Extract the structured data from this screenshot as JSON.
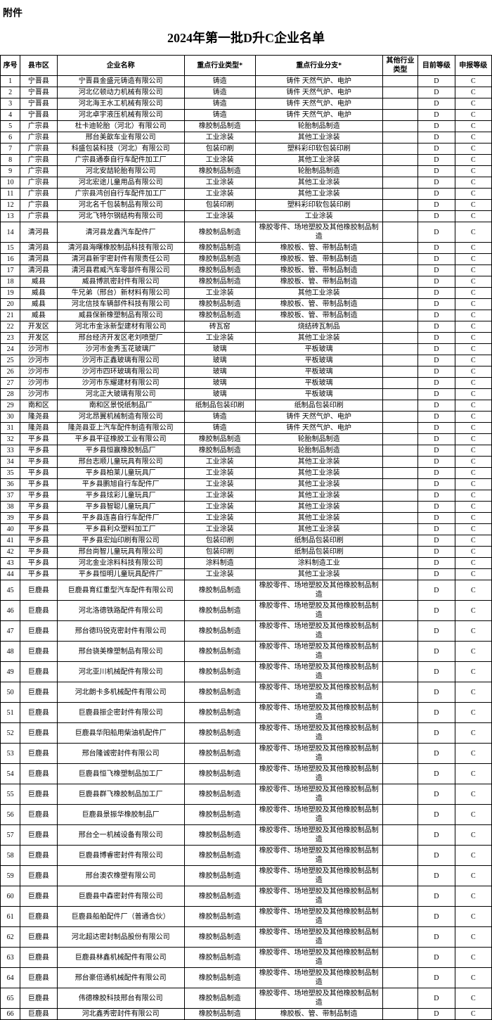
{
  "attachment_label": "附件",
  "title": "2024年第一批D升C企业名单",
  "columns": [
    "序号",
    "县市区",
    "企业名称",
    "重点行业类型*",
    "重点行业分支*",
    "其他行业类型",
    "目前等级",
    "申报等级"
  ],
  "rows": [
    {
      "n": 1,
      "county": "宁晋县",
      "name": "宁晋县金盛元铸造有限公司",
      "ind": "铸造",
      "br": "铸件  天然气炉、电炉",
      "o": "",
      "cur": "D",
      "app": "C",
      "tall": false
    },
    {
      "n": 2,
      "county": "宁晋县",
      "name": "河北亿顿动力机械有限公司",
      "ind": "铸造",
      "br": "铸件  天然气炉、电炉",
      "o": "",
      "cur": "D",
      "app": "C",
      "tall": false
    },
    {
      "n": 3,
      "county": "宁晋县",
      "name": "河北海王水工机械有限公司",
      "ind": "铸造",
      "br": "铸件  天然气炉、电炉",
      "o": "",
      "cur": "D",
      "app": "C",
      "tall": false
    },
    {
      "n": 4,
      "county": "宁晋县",
      "name": "河北卓宇液压机械有限公司",
      "ind": "铸造",
      "br": "铸件  天然气炉、电炉",
      "o": "",
      "cur": "D",
      "app": "C",
      "tall": false
    },
    {
      "n": 5,
      "county": "广宗县",
      "name": "杜卡迪轮胎（河北）有限公司",
      "ind": "橡胶制品制造",
      "br": "轮胎制品制造",
      "o": "",
      "cur": "D",
      "app": "C",
      "tall": false
    },
    {
      "n": 6,
      "county": "广宗县",
      "name": "邢台美歆车业有限公司",
      "ind": "工业涂装",
      "br": "其他工业涂装",
      "o": "",
      "cur": "D",
      "app": "C",
      "tall": false
    },
    {
      "n": 7,
      "county": "广宗县",
      "name": "科盛包装科技（河北）有限公司",
      "ind": "包装印刷",
      "br": "塑料彩印软包装印刷",
      "o": "",
      "cur": "D",
      "app": "C",
      "tall": false
    },
    {
      "n": 8,
      "county": "广宗县",
      "name": "广宗县通泰自行车配件加工厂",
      "ind": "工业涂装",
      "br": "其他工业涂装",
      "o": "",
      "cur": "D",
      "app": "C",
      "tall": false
    },
    {
      "n": 9,
      "county": "广宗县",
      "name": "河北安喆轮胎有限公司",
      "ind": "橡胶制品制造",
      "br": "轮胎制品制造",
      "o": "",
      "cur": "D",
      "app": "C",
      "tall": false
    },
    {
      "n": 10,
      "county": "广宗县",
      "name": "河北宏途儿童用品有限公司",
      "ind": "工业涂装",
      "br": "其他工业涂装",
      "o": "",
      "cur": "D",
      "app": "C",
      "tall": false
    },
    {
      "n": 11,
      "county": "广宗县",
      "name": "广宗县鸿创自行车配件加工厂",
      "ind": "工业涂装",
      "br": "其他工业涂装",
      "o": "",
      "cur": "D",
      "app": "C",
      "tall": false
    },
    {
      "n": 12,
      "county": "广宗县",
      "name": "河北名千包装制品有限公司",
      "ind": "包装印刷",
      "br": "塑料彩印软包装印刷",
      "o": "",
      "cur": "D",
      "app": "C",
      "tall": false
    },
    {
      "n": 13,
      "county": "广宗县",
      "name": "河北飞特尔钢结构有限公司",
      "ind": "工业涂装",
      "br": "工业涂装",
      "o": "",
      "cur": "D",
      "app": "C",
      "tall": false
    },
    {
      "n": 14,
      "county": "清河县",
      "name": "清河县龙鑫汽车配件厂",
      "ind": "橡胶制品制造",
      "br": "橡胶零件、场地塑胶及其他橡胶制品制造",
      "o": "",
      "cur": "D",
      "app": "C",
      "tall": true
    },
    {
      "n": 15,
      "county": "清河县",
      "name": "清河县海曙橡胶制品科技有限公司",
      "ind": "橡胶制品制造",
      "br": "橡胶板、管、带制品制造",
      "o": "",
      "cur": "D",
      "app": "C",
      "tall": false
    },
    {
      "n": 16,
      "county": "清河县",
      "name": "清河县新宇密封件有限责任公司",
      "ind": "橡胶制品制造",
      "br": "橡胶板、管、带制品制造",
      "o": "",
      "cur": "D",
      "app": "C",
      "tall": false
    },
    {
      "n": 17,
      "county": "清河县",
      "name": "清河县君威汽车零部件有限公司",
      "ind": "橡胶制品制造",
      "br": "橡胶板、管、带制品制造",
      "o": "",
      "cur": "D",
      "app": "C",
      "tall": false
    },
    {
      "n": 18,
      "county": "威县",
      "name": "威县博凯密封件有限公司",
      "ind": "橡胶制品制造",
      "br": "橡胶板、管、带制品制造",
      "o": "",
      "cur": "D",
      "app": "C",
      "tall": false
    },
    {
      "n": 19,
      "county": "威县",
      "name": "牛兄弟（邢台）新材料有限公司",
      "ind": "工业涂装",
      "br": "其他工业涂装",
      "o": "",
      "cur": "D",
      "app": "C",
      "tall": false
    },
    {
      "n": 20,
      "county": "威县",
      "name": "河北信技车辆部件科技有限公司",
      "ind": "橡胶制品制造",
      "br": "橡胶板、管、带制品制造",
      "o": "",
      "cur": "D",
      "app": "C",
      "tall": false
    },
    {
      "n": 21,
      "county": "威县",
      "name": "威县保新橡塑制品有限公司",
      "ind": "橡胶制品制造",
      "br": "橡胶板、管、带制品制造",
      "o": "",
      "cur": "D",
      "app": "C",
      "tall": false
    },
    {
      "n": 22,
      "county": "开发区",
      "name": "河北市金泳新型建材有限公司",
      "ind": "砖瓦窑",
      "br": "烧结砖瓦制品",
      "o": "",
      "cur": "D",
      "app": "C",
      "tall": false
    },
    {
      "n": 23,
      "county": "开发区",
      "name": "邢台经济开发区老刘喷塑厂",
      "ind": "工业涂装",
      "br": "其他工业涂装",
      "o": "",
      "cur": "D",
      "app": "C",
      "tall": false
    },
    {
      "n": 24,
      "county": "沙河市",
      "name": "沙河市金秀玉花玻璃厂",
      "ind": "玻璃",
      "br": "平板玻璃",
      "o": "",
      "cur": "D",
      "app": "C",
      "tall": false
    },
    {
      "n": 25,
      "county": "沙河市",
      "name": "沙河市正鑫玻璃有限公司",
      "ind": "玻璃",
      "br": "平板玻璃",
      "o": "",
      "cur": "D",
      "app": "C",
      "tall": false
    },
    {
      "n": 26,
      "county": "沙河市",
      "name": "沙河市四环玻璃有限公司",
      "ind": "玻璃",
      "br": "平板玻璃",
      "o": "",
      "cur": "D",
      "app": "C",
      "tall": false
    },
    {
      "n": 27,
      "county": "沙河市",
      "name": "沙河市东耀建材有限公司",
      "ind": "玻璃",
      "br": "平板玻璃",
      "o": "",
      "cur": "D",
      "app": "C",
      "tall": false
    },
    {
      "n": 28,
      "county": "沙河市",
      "name": "河北正大玻璃有限公司",
      "ind": "玻璃",
      "br": "平板玻璃",
      "o": "",
      "cur": "D",
      "app": "C",
      "tall": false
    },
    {
      "n": 29,
      "county": "南和区",
      "name": "南和区景悦纸制品厂",
      "ind": "纸制品包装印刷",
      "br": "纸制品包装印刷",
      "o": "",
      "cur": "D",
      "app": "C",
      "tall": false
    },
    {
      "n": 30,
      "county": "隆尧县",
      "name": "河北昂翼机械制造有限公司",
      "ind": "铸造",
      "br": "铸件  天然气炉、电炉",
      "o": "",
      "cur": "D",
      "app": "C",
      "tall": false
    },
    {
      "n": 31,
      "county": "隆尧县",
      "name": "隆尧县亚上汽车配件制造有限公司",
      "ind": "铸造",
      "br": "铸件  天然气炉、电炉",
      "o": "",
      "cur": "D",
      "app": "C",
      "tall": false
    },
    {
      "n": 32,
      "county": "平乡县",
      "name": "平乡县平征橡胶工业有限公司",
      "ind": "橡胶制品制造",
      "br": "轮胎制品制造",
      "o": "",
      "cur": "D",
      "app": "C",
      "tall": false
    },
    {
      "n": 33,
      "county": "平乡县",
      "name": "平乡县恒赢橡胶制品厂",
      "ind": "橡胶制品制造",
      "br": "轮胎制品制造",
      "o": "",
      "cur": "D",
      "app": "C",
      "tall": false
    },
    {
      "n": 34,
      "county": "平乡县",
      "name": "邢台志顺儿童玩具有限公司",
      "ind": "工业涂装",
      "br": "其他工业涂装",
      "o": "",
      "cur": "D",
      "app": "C",
      "tall": false
    },
    {
      "n": 35,
      "county": "平乡县",
      "name": "平乡县柏莱儿童玩具厂",
      "ind": "工业涂装",
      "br": "其他工业涂装",
      "o": "",
      "cur": "D",
      "app": "C",
      "tall": false
    },
    {
      "n": 36,
      "county": "平乡县",
      "name": "平乡县鹏旭自行车配件厂",
      "ind": "工业涂装",
      "br": "其他工业涂装",
      "o": "",
      "cur": "D",
      "app": "C",
      "tall": false
    },
    {
      "n": 37,
      "county": "平乡县",
      "name": "平乡县炫彩儿童玩具厂",
      "ind": "工业涂装",
      "br": "其他工业涂装",
      "o": "",
      "cur": "D",
      "app": "C",
      "tall": false
    },
    {
      "n": 38,
      "county": "平乡县",
      "name": "平乡县智聪儿童玩具厂",
      "ind": "工业涂装",
      "br": "其他工业涂装",
      "o": "",
      "cur": "D",
      "app": "C",
      "tall": false
    },
    {
      "n": 39,
      "county": "平乡县",
      "name": "平乡县连喜自行车配件厂",
      "ind": "工业涂装",
      "br": "其他工业涂装",
      "o": "",
      "cur": "D",
      "app": "C",
      "tall": false
    },
    {
      "n": 40,
      "county": "平乡县",
      "name": "平乡县利众塑料加工厂",
      "ind": "工业涂装",
      "br": "其他工业涂装",
      "o": "",
      "cur": "D",
      "app": "C",
      "tall": false
    },
    {
      "n": 41,
      "county": "平乡县",
      "name": "平乡县宏灿印刷有限公司",
      "ind": "包装印刷",
      "br": "纸制品包装印刷",
      "o": "",
      "cur": "D",
      "app": "C",
      "tall": false
    },
    {
      "n": 42,
      "county": "平乡县",
      "name": "邢台尚智儿童玩具有限公司",
      "ind": "包装印刷",
      "br": "纸制品包装印刷",
      "o": "",
      "cur": "D",
      "app": "C",
      "tall": false
    },
    {
      "n": 43,
      "county": "平乡县",
      "name": "河北金业涂料科技有限公司",
      "ind": "涂料制造",
      "br": "涂料制造工业",
      "o": "",
      "cur": "D",
      "app": "C",
      "tall": false
    },
    {
      "n": 44,
      "county": "平乡县",
      "name": "平乡县恒明儿童玩具配件厂",
      "ind": "工业涂装",
      "br": "其他工业涂装",
      "o": "",
      "cur": "D",
      "app": "C",
      "tall": false
    },
    {
      "n": 45,
      "county": "巨鹿县",
      "name": "巨鹿县育红重型汽车配件有限公司",
      "ind": "橡胶制品制造",
      "br": "橡胶零件、场地塑胶及其他橡胶制品制造",
      "o": "",
      "cur": "D",
      "app": "C",
      "tall": true
    },
    {
      "n": 46,
      "county": "巨鹿县",
      "name": "河北洛德铁路配件有限公司",
      "ind": "橡胶制品制造",
      "br": "橡胶零件、场地塑胶及其他橡胶制品制造",
      "o": "",
      "cur": "D",
      "app": "C",
      "tall": true
    },
    {
      "n": 47,
      "county": "巨鹿县",
      "name": "邢台德玛锐克密封件有限公司",
      "ind": "橡胶制品制造",
      "br": "橡胶零件、场地塑胶及其他橡胶制品制造",
      "o": "",
      "cur": "D",
      "app": "C",
      "tall": true
    },
    {
      "n": 48,
      "county": "巨鹿县",
      "name": "邢台骁美橡塑制品有限公司",
      "ind": "橡胶制品制造",
      "br": "橡胶零件、场地塑胶及其他橡胶制品制造",
      "o": "",
      "cur": "D",
      "app": "C",
      "tall": true
    },
    {
      "n": 49,
      "county": "巨鹿县",
      "name": "河北亚川机械配件有限公司",
      "ind": "橡胶制品制造",
      "br": "橡胶零件、场地塑胶及其他橡胶制品制造",
      "o": "",
      "cur": "D",
      "app": "C",
      "tall": true
    },
    {
      "n": 50,
      "county": "巨鹿县",
      "name": "河北朗卡多机械配件有限公司",
      "ind": "橡胶制品制造",
      "br": "橡胶零件、场地塑胶及其他橡胶制品制造",
      "o": "",
      "cur": "D",
      "app": "C",
      "tall": true
    },
    {
      "n": 51,
      "county": "巨鹿县",
      "name": "巨鹿县振企密封件有限公司",
      "ind": "橡胶制品制造",
      "br": "橡胶零件、场地塑胶及其他橡胶制品制造",
      "o": "",
      "cur": "D",
      "app": "C",
      "tall": true
    },
    {
      "n": 52,
      "county": "巨鹿县",
      "name": "巨鹿县华阳船用柴油机配件厂",
      "ind": "橡胶制品制造",
      "br": "橡胶零件、场地塑胶及其他橡胶制品制造",
      "o": "",
      "cur": "D",
      "app": "C",
      "tall": true
    },
    {
      "n": 53,
      "county": "巨鹿县",
      "name": "邢台隆诚密封件有限公司",
      "ind": "橡胶制品制造",
      "br": "橡胶零件、场地塑胶及其他橡胶制品制造",
      "o": "",
      "cur": "D",
      "app": "C",
      "tall": true
    },
    {
      "n": 54,
      "county": "巨鹿县",
      "name": "巨鹿县恒飞橡塑制品加工厂",
      "ind": "橡胶制品制造",
      "br": "橡胶零件、场地塑胶及其他橡胶制品制造",
      "o": "",
      "cur": "D",
      "app": "C",
      "tall": true
    },
    {
      "n": 55,
      "county": "巨鹿县",
      "name": "巨鹿县群飞橡胶制品加工厂",
      "ind": "橡胶制品制造",
      "br": "橡胶零件、场地塑胶及其他橡胶制品制造",
      "o": "",
      "cur": "D",
      "app": "C",
      "tall": true
    },
    {
      "n": 56,
      "county": "巨鹿县",
      "name": "巨鹿县景振华橡胶制品厂",
      "ind": "橡胶制品制造",
      "br": "橡胶零件、场地塑胶及其他橡胶制品制造",
      "o": "",
      "cur": "D",
      "app": "C",
      "tall": true
    },
    {
      "n": 57,
      "county": "巨鹿县",
      "name": "邢台仝一机械设备有限公司",
      "ind": "橡胶制品制造",
      "br": "橡胶零件、场地塑胶及其他橡胶制品制造",
      "o": "",
      "cur": "D",
      "app": "C",
      "tall": true
    },
    {
      "n": 58,
      "county": "巨鹿县",
      "name": "巨鹿县博睿密封件有限公司",
      "ind": "橡胶制品制造",
      "br": "橡胶零件、场地塑胶及其他橡胶制品制造",
      "o": "",
      "cur": "D",
      "app": "C",
      "tall": true
    },
    {
      "n": 59,
      "county": "巨鹿县",
      "name": "邢台澳农橡塑有限公司",
      "ind": "橡胶制品制造",
      "br": "橡胶零件、场地塑胶及其他橡胶制品制造",
      "o": "",
      "cur": "D",
      "app": "C",
      "tall": true
    },
    {
      "n": 60,
      "county": "巨鹿县",
      "name": "巨鹿县中森密封件有限公司",
      "ind": "橡胶制品制造",
      "br": "橡胶零件、场地塑胶及其他橡胶制品制造",
      "o": "",
      "cur": "D",
      "app": "C",
      "tall": true
    },
    {
      "n": 61,
      "county": "巨鹿县",
      "name": "巨鹿县船舶配件厂（普通合伙）",
      "ind": "橡胶制品制造",
      "br": "橡胶零件、场地塑胶及其他橡胶制品制造",
      "o": "",
      "cur": "D",
      "app": "C",
      "tall": true
    },
    {
      "n": 62,
      "county": "巨鹿县",
      "name": "河北超达密封制品股份有限公司",
      "ind": "橡胶制品制造",
      "br": "橡胶零件、场地塑胶及其他橡胶制品制造",
      "o": "",
      "cur": "D",
      "app": "C",
      "tall": true
    },
    {
      "n": 63,
      "county": "巨鹿县",
      "name": "巨鹿县林鑫机械配件有限公司",
      "ind": "橡胶制品制造",
      "br": "橡胶零件、场地塑胶及其他橡胶制品制造",
      "o": "",
      "cur": "D",
      "app": "C",
      "tall": true
    },
    {
      "n": 64,
      "county": "巨鹿县",
      "name": "邢台豪倍通机械配件有限公司",
      "ind": "橡胶制品制造",
      "br": "橡胶零件、场地塑胶及其他橡胶制品制造",
      "o": "",
      "cur": "D",
      "app": "C",
      "tall": true
    },
    {
      "n": 65,
      "county": "巨鹿县",
      "name": "伟德橡胶科技邢台有限公司",
      "ind": "橡胶制品制造",
      "br": "橡胶零件、场地塑胶及其他橡胶制品制造",
      "o": "",
      "cur": "D",
      "app": "C",
      "tall": true
    },
    {
      "n": 66,
      "county": "巨鹿县",
      "name": "河北鑫秀密封件有限公司",
      "ind": "橡胶制品制造",
      "br": "橡胶板、管、带制品制造",
      "o": "",
      "cur": "D",
      "app": "C",
      "tall": false
    }
  ]
}
